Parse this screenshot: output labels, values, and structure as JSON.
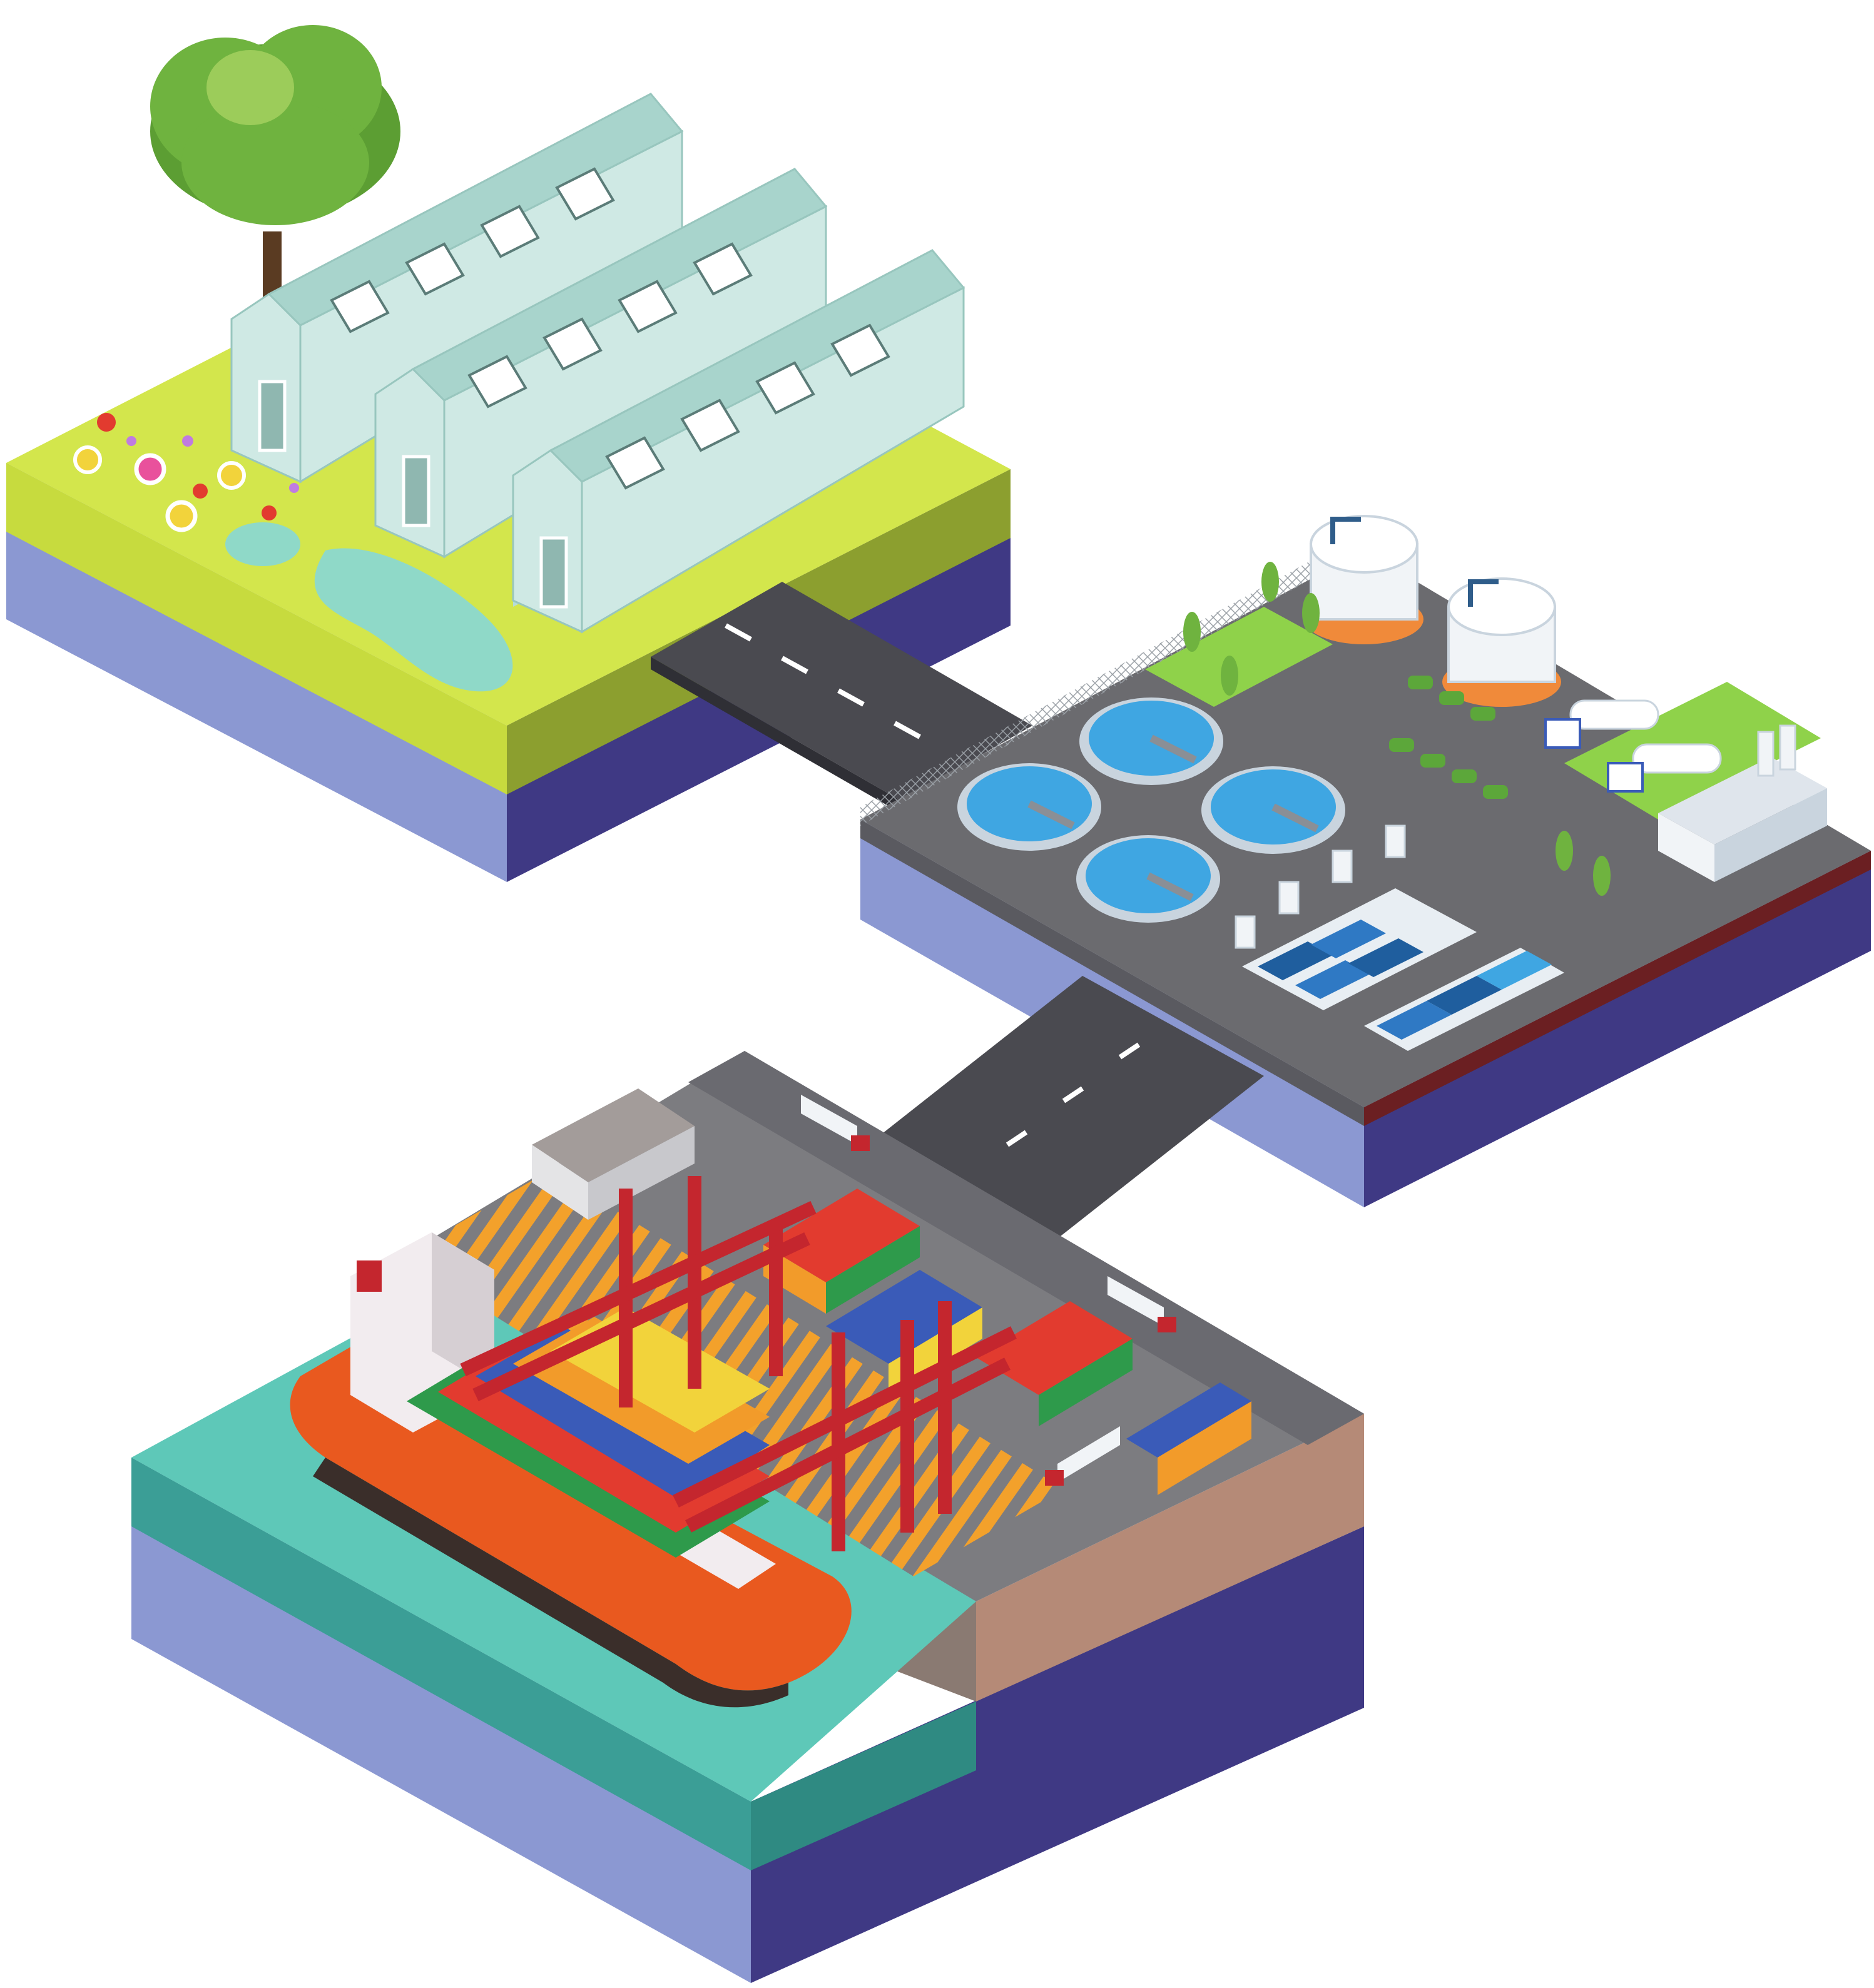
{
  "scene": {
    "description_name": "isometric-infrastructure-illustration",
    "palette": {
      "background": "#ffffff",
      "ground_side_light": "#8b98d2",
      "ground_side_dark": "#3f3984",
      "grass_top": "#d3e64c",
      "grass_side": "#8c9f2f",
      "greenhouse_glass": "#cfe9e4",
      "greenhouse_roof": "#b6ddd6",
      "pond": "#8fd9c8",
      "tree_foliage": "#6fb33f",
      "tree_trunk": "#5a3b22",
      "road": "#4a4a50",
      "road_marking": "#ffffff",
      "plant_floor": "#6b6b6f",
      "plant_grass": "#8fd24a",
      "clarifier_water": "#3fa6e2",
      "clarifier_rim": "#c9d4de",
      "tank_white": "#f1f4f7",
      "tank_base": "#f08a3a",
      "filter_water": "#2f79c4",
      "port_floor": "#7c7c80",
      "hazard_stripe": "#f3a12b",
      "crane_red": "#c4262e",
      "water": "#5ec8b8",
      "water_side": "#3b9e96",
      "ship_hull": "#e9591f",
      "ship_superstructure": "#f2ecef",
      "container_colors": [
        "#e23b2f",
        "#f29b2a",
        "#2e9a4b",
        "#3a5bb8",
        "#f2d33b",
        "#ffffff",
        "#8b3fb0",
        "#1a7fb5"
      ]
    },
    "icons": [
      "tree-icon",
      "greenhouse-icon",
      "storage-tank-icon",
      "clarifier-icon",
      "tanker-truck-icon",
      "gantry-crane-icon",
      "container-ship-icon",
      "container-truck-icon"
    ]
  }
}
